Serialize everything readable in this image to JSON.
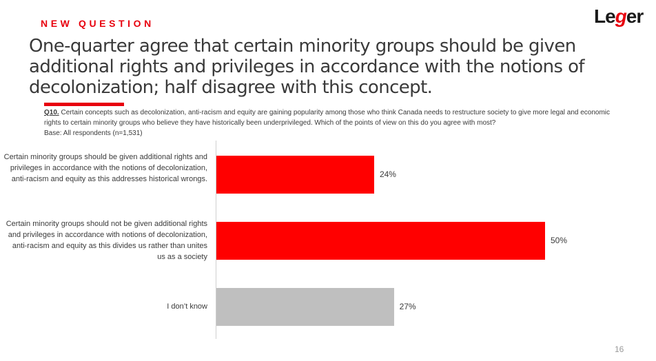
{
  "header": {
    "kicker": "NEW QUESTION",
    "logo": "Leger",
    "headline": "One-quarter agree that certain minority groups should be given additional rights and privileges in accordance with the notions of decolonization; half disagree with this concept.",
    "question_number": "Q10.",
    "question_text": " Certain concepts such as decolonization, anti-racism and equity are gaining popularity among those who think Canada needs to restructure society to give more legal and economic rights to certain minority groups who believe they have historically been underprivileged. Which of the points of view on this do you agree with most?",
    "base": "Base: All respondents (n=1,531)"
  },
  "chart_data": {
    "type": "bar",
    "orientation": "horizontal",
    "categories": [
      "Certain minority groups should be given additional rights and privileges in accordance with the notions of decolonization, anti-racism and equity as this addresses historical wrongs.",
      "Certain minority groups should not be given additional rights and privileges in accordance with notions of decolonization, anti-racism and equity as this divides us rather than unites us as a society",
      "I don’t know"
    ],
    "values": [
      24,
      50,
      27
    ],
    "value_labels": [
      "24%",
      "50%",
      "27%"
    ],
    "colors": [
      "#ff0000",
      "#ff0000",
      "#bfbfbf"
    ],
    "xlim": [
      0,
      50
    ],
    "grid": false
  },
  "footer": {
    "page_number": "16"
  }
}
